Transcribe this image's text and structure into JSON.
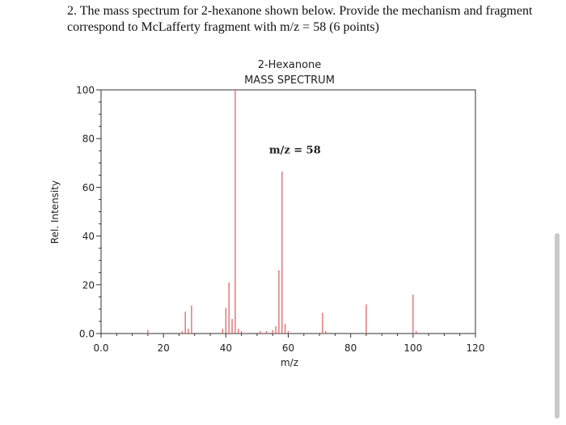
{
  "question": {
    "line1": "2. The mass spectrum for 2-hexanone shown below. Provide the mechanism and fragment",
    "line2": "correspond to McLafferty fragment with m/z = 58  (6 points)"
  },
  "chart_data": {
    "type": "bar",
    "title": "2-Hexanone",
    "subtitle": "MASS SPECTRUM",
    "xlabel": "m/z",
    "ylabel": "Rel. Intensity",
    "xlim": [
      0,
      120
    ],
    "ylim": [
      0,
      100
    ],
    "x_ticks": [
      {
        "value": 0,
        "label": "0.0"
      },
      {
        "value": 20,
        "label": "20"
      },
      {
        "value": 40,
        "label": "40"
      },
      {
        "value": 60,
        "label": "60"
      },
      {
        "value": 80,
        "label": "80"
      },
      {
        "value": 100,
        "label": "100"
      },
      {
        "value": 120,
        "label": "120"
      }
    ],
    "y_ticks": [
      {
        "value": 0,
        "label": "0.0"
      },
      {
        "value": 20,
        "label": "20"
      },
      {
        "value": 40,
        "label": "40"
      },
      {
        "value": 60,
        "label": "60"
      },
      {
        "value": 80,
        "label": "80"
      },
      {
        "value": 100,
        "label": "100"
      }
    ],
    "grid": false,
    "bar_color": "#e07070",
    "peaks": [
      {
        "mz": 15,
        "intensity": 1.5
      },
      {
        "mz": 26,
        "intensity": 1
      },
      {
        "mz": 27,
        "intensity": 9
      },
      {
        "mz": 28,
        "intensity": 2
      },
      {
        "mz": 29,
        "intensity": 11.5
      },
      {
        "mz": 39,
        "intensity": 2
      },
      {
        "mz": 40,
        "intensity": 10.5
      },
      {
        "mz": 41,
        "intensity": 21
      },
      {
        "mz": 42,
        "intensity": 6
      },
      {
        "mz": 43,
        "intensity": 100
      },
      {
        "mz": 44,
        "intensity": 2
      },
      {
        "mz": 45,
        "intensity": 1
      },
      {
        "mz": 51,
        "intensity": 1
      },
      {
        "mz": 53,
        "intensity": 1
      },
      {
        "mz": 55,
        "intensity": 1.5
      },
      {
        "mz": 56,
        "intensity": 3
      },
      {
        "mz": 57,
        "intensity": 26
      },
      {
        "mz": 58,
        "intensity": 66.5
      },
      {
        "mz": 59,
        "intensity": 4
      },
      {
        "mz": 60,
        "intensity": 1
      },
      {
        "mz": 71,
        "intensity": 8.5
      },
      {
        "mz": 72,
        "intensity": 1
      },
      {
        "mz": 85,
        "intensity": 12
      },
      {
        "mz": 100,
        "intensity": 16
      },
      {
        "mz": 101,
        "intensity": 1
      }
    ],
    "annotation": {
      "text": "m/z = 58",
      "mz": 58,
      "intensity": 74
    }
  }
}
